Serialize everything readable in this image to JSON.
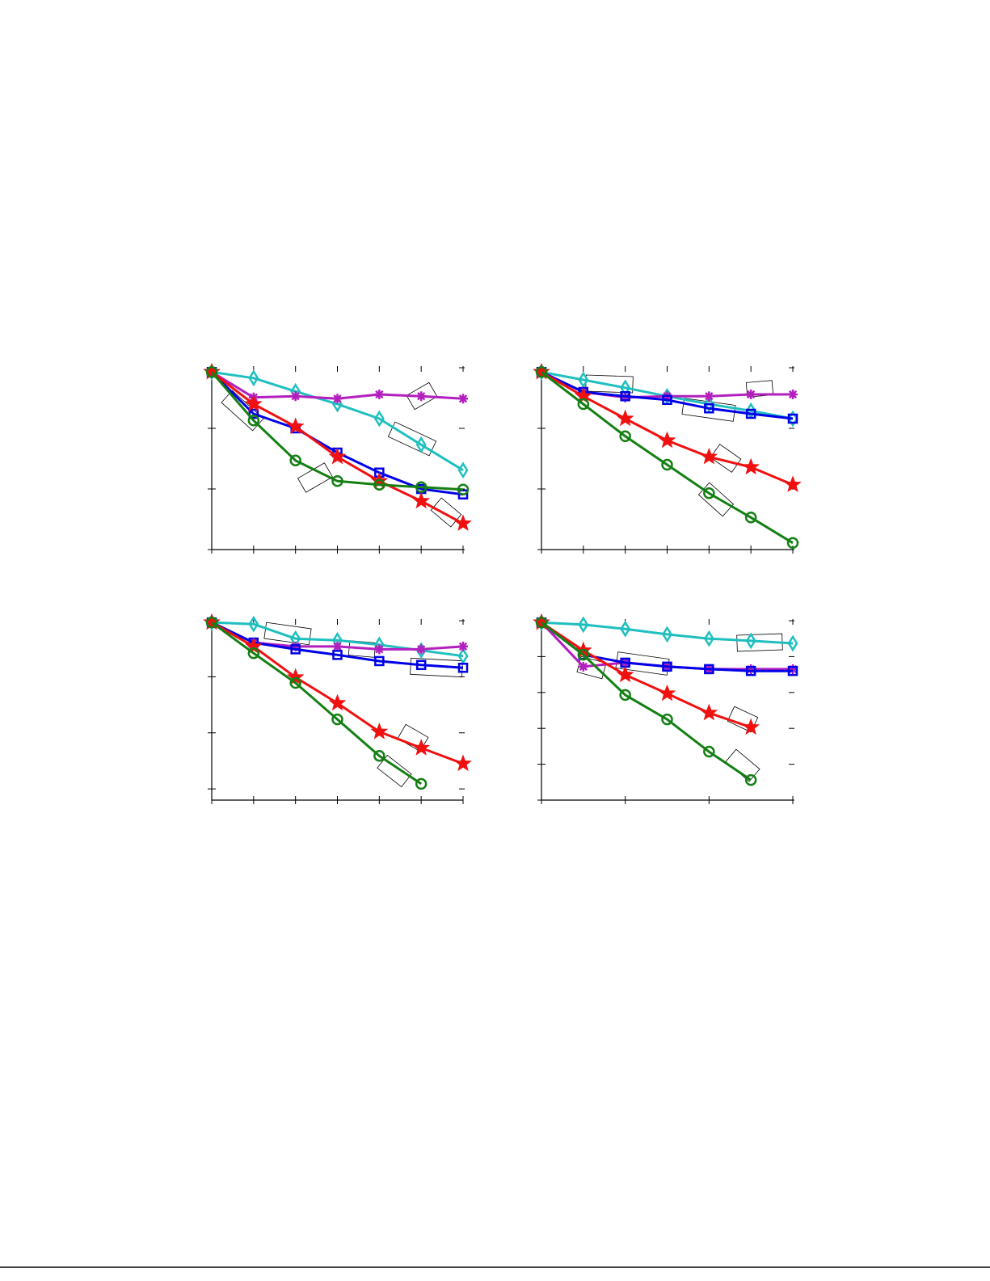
{
  "chart_data": [
    {
      "type": "line",
      "x": [
        0,
        1,
        2,
        3,
        4,
        5,
        6
      ],
      "xlim": [
        0,
        6
      ],
      "xticks": [
        0,
        1,
        2,
        3,
        4,
        5,
        6
      ],
      "ylim": [
        0,
        3
      ],
      "yticks": [
        0,
        1,
        2,
        3
      ],
      "series": [
        {
          "color": "#1fbfbf",
          "marker": "diamond",
          "values": [
            2.93,
            2.83,
            2.61,
            2.4,
            2.16,
            1.73,
            1.31
          ]
        },
        {
          "color": "#b31fbf",
          "marker": "asterisk",
          "values": [
            2.93,
            2.51,
            2.53,
            2.49,
            2.56,
            2.53,
            2.49
          ]
        },
        {
          "color": "#0000e6",
          "marker": "square",
          "values": [
            2.93,
            2.24,
            2.0,
            1.6,
            1.27,
            1.0,
            0.91
          ]
        },
        {
          "color": "#f01010",
          "marker": "star",
          "values": [
            2.93,
            2.4,
            2.03,
            1.53,
            1.13,
            0.8,
            0.43
          ]
        },
        {
          "color": "#148014",
          "marker": "circle",
          "values": [
            2.93,
            2.13,
            1.47,
            1.13,
            1.07,
            1.03,
            0.99
          ]
        }
      ]
    },
    {
      "type": "line",
      "x": [
        0,
        1,
        2,
        3,
        4,
        5,
        6
      ],
      "xlim": [
        0,
        6
      ],
      "xticks": [
        0,
        1,
        2,
        3,
        4,
        5,
        6
      ],
      "ylim": [
        0,
        3
      ],
      "yticks": [
        0,
        1,
        2,
        3
      ],
      "series": [
        {
          "color": "#1fbfbf",
          "marker": "diamond",
          "values": [
            2.93,
            2.8,
            2.67,
            2.53,
            2.4,
            2.29,
            2.16
          ]
        },
        {
          "color": "#b31fbf",
          "marker": "asterisk",
          "values": [
            2.93,
            2.6,
            2.51,
            2.53,
            2.53,
            2.56,
            2.56
          ]
        },
        {
          "color": "#0000e6",
          "marker": "square",
          "values": [
            2.93,
            2.6,
            2.53,
            2.47,
            2.33,
            2.24,
            2.16
          ]
        },
        {
          "color": "#f01010",
          "marker": "star",
          "values": [
            2.93,
            2.53,
            2.16,
            1.8,
            1.53,
            1.36,
            1.07
          ]
        },
        {
          "color": "#148014",
          "marker": "circle",
          "values": [
            2.93,
            2.4,
            1.87,
            1.4,
            0.93,
            0.53,
            0.11
          ]
        }
      ]
    },
    {
      "type": "line",
      "x": [
        0,
        1,
        2,
        3,
        4,
        5,
        6
      ],
      "xlim": [
        0,
        6
      ],
      "xticks": [
        0,
        1,
        2,
        3,
        4,
        5,
        6
      ],
      "ylim": [
        -0.2,
        3
      ],
      "yticks": [
        0,
        1,
        2,
        3
      ],
      "series": [
        {
          "color": "#1fbfbf",
          "marker": "diamond",
          "values": [
            2.97,
            2.94,
            2.68,
            2.65,
            2.57,
            2.47,
            2.37
          ]
        },
        {
          "color": "#b31fbf",
          "marker": "asterisk",
          "values": [
            2.97,
            2.61,
            2.54,
            2.54,
            2.49,
            2.49,
            2.54
          ]
        },
        {
          "color": "#0000e6",
          "marker": "square",
          "values": [
            2.97,
            2.61,
            2.49,
            2.39,
            2.28,
            2.21,
            2.16
          ]
        },
        {
          "color": "#f01010",
          "marker": "star",
          "values": [
            2.97,
            2.54,
            1.99,
            1.53,
            1.02,
            0.73,
            0.45
          ]
        },
        {
          "color": "#148014",
          "marker": "circle",
          "values": [
            2.97,
            2.42,
            1.89,
            1.24,
            0.59,
            0.09,
            null
          ]
        }
      ]
    },
    {
      "type": "line",
      "x": [
        0,
        0.5,
        1,
        1.5,
        2,
        2.5,
        3
      ],
      "xlim": [
        0,
        3
      ],
      "xticks": [
        0,
        1,
        2,
        3
      ],
      "ylim": [
        0,
        5
      ],
      "yticks": [
        0,
        1,
        2,
        3,
        4,
        5
      ],
      "series": [
        {
          "color": "#1fbfbf",
          "marker": "diamond",
          "values": [
            4.95,
            4.89,
            4.77,
            4.62,
            4.5,
            4.44,
            4.37
          ]
        },
        {
          "color": "#b31fbf",
          "marker": "asterisk",
          "values": [
            4.95,
            3.72,
            3.83,
            3.72,
            3.65,
            3.65,
            3.65
          ]
        },
        {
          "color": "#0000e6",
          "marker": "square",
          "values": [
            4.95,
            4.05,
            3.83,
            3.72,
            3.65,
            3.6,
            3.6
          ]
        },
        {
          "color": "#f01010",
          "marker": "star",
          "values": [
            4.95,
            4.17,
            3.49,
            2.97,
            2.43,
            2.03,
            null
          ]
        },
        {
          "color": "#148014",
          "marker": "circle",
          "values": [
            4.95,
            4.05,
            2.93,
            2.25,
            1.35,
            0.56,
            null
          ]
        }
      ]
    }
  ]
}
